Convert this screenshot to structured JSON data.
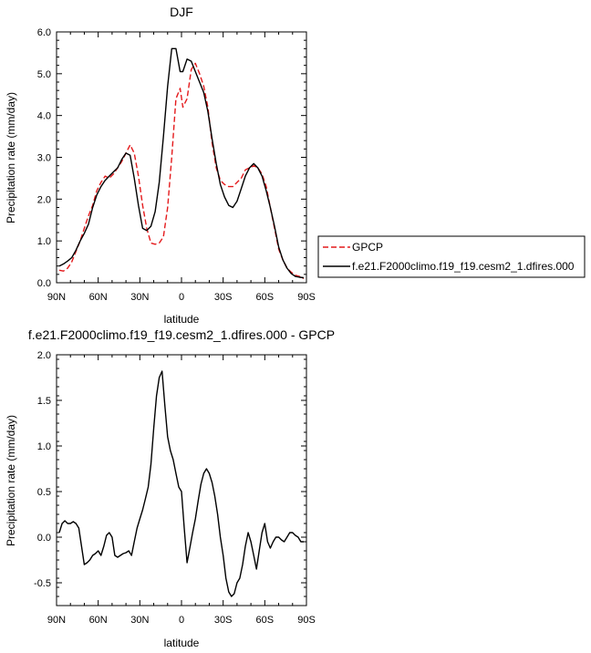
{
  "chart_data": [
    {
      "type": "line",
      "title": "DJF",
      "xlabel": "latitude",
      "ylabel": "Precipitation rate (mm/day)",
      "xlim": [
        90,
        -90
      ],
      "ylim": [
        0,
        6
      ],
      "x_ticks": [
        90,
        60,
        30,
        0,
        -30,
        -60,
        -90
      ],
      "x_tick_labels": [
        "90N",
        "60N",
        "30N",
        "0",
        "30S",
        "60S",
        "90S"
      ],
      "y_ticks": [
        0,
        1,
        2,
        3,
        4,
        5,
        6
      ],
      "y_tick_labels": [
        "0.0",
        "1.0",
        "2.0",
        "3.0",
        "4.0",
        "5.0",
        "6.0"
      ],
      "legend_position": "right",
      "series": [
        {
          "name": "GPCP",
          "color": "#e41a1c",
          "dash": "dashed",
          "x": [
            88,
            85,
            82,
            79,
            76,
            73,
            70,
            67,
            64,
            61,
            58,
            55,
            52,
            49,
            46,
            43,
            40,
            37,
            34,
            31,
            28,
            25,
            22,
            19,
            16,
            13,
            10,
            7,
            4,
            1,
            -1,
            -4,
            -7,
            -10,
            -13,
            -16,
            -19,
            -22,
            -25,
            -28,
            -31,
            -34,
            -37,
            -40,
            -43,
            -46,
            -49,
            -52,
            -55,
            -58,
            -61,
            -64,
            -67,
            -70,
            -73,
            -76,
            -79,
            -82,
            -85,
            -88
          ],
          "y": [
            0.3,
            0.28,
            0.35,
            0.5,
            0.75,
            1.0,
            1.3,
            1.6,
            1.85,
            2.2,
            2.4,
            2.55,
            2.5,
            2.6,
            2.75,
            2.9,
            3.1,
            3.3,
            3.1,
            2.55,
            1.85,
            1.3,
            0.95,
            0.92,
            0.95,
            1.1,
            1.8,
            3.0,
            4.4,
            4.65,
            4.2,
            4.4,
            5.1,
            5.25,
            5.0,
            4.7,
            4.2,
            3.35,
            2.75,
            2.45,
            2.35,
            2.3,
            2.3,
            2.4,
            2.5,
            2.7,
            2.75,
            2.8,
            2.75,
            2.6,
            2.3,
            1.8,
            1.3,
            0.8,
            0.55,
            0.35,
            0.25,
            0.18,
            0.15,
            0.1
          ]
        },
        {
          "name": "f.e21.F2000climo.f19_f19.cesm2_1.dfires.000",
          "color": "#000000",
          "dash": "solid",
          "x": [
            88,
            85,
            82,
            79,
            76,
            73,
            70,
            67,
            64,
            61,
            58,
            55,
            52,
            49,
            46,
            43,
            40,
            37,
            34,
            31,
            28,
            25,
            22,
            19,
            16,
            13,
            10,
            7,
            4,
            1,
            -1,
            -4,
            -7,
            -10,
            -13,
            -16,
            -19,
            -22,
            -25,
            -28,
            -31,
            -34,
            -37,
            -40,
            -43,
            -46,
            -49,
            -52,
            -55,
            -58,
            -61,
            -64,
            -67,
            -70,
            -73,
            -76,
            -79,
            -82,
            -85,
            -88
          ],
          "y": [
            0.4,
            0.45,
            0.52,
            0.6,
            0.78,
            1.0,
            1.18,
            1.4,
            1.8,
            2.1,
            2.3,
            2.45,
            2.55,
            2.65,
            2.75,
            2.95,
            3.1,
            3.05,
            2.5,
            1.85,
            1.3,
            1.25,
            1.35,
            1.7,
            2.4,
            3.5,
            4.7,
            5.6,
            5.6,
            5.05,
            5.05,
            5.35,
            5.3,
            5.05,
            4.8,
            4.55,
            4.1,
            3.45,
            2.85,
            2.35,
            2.05,
            1.85,
            1.8,
            1.95,
            2.25,
            2.55,
            2.75,
            2.85,
            2.75,
            2.55,
            2.2,
            1.8,
            1.35,
            0.85,
            0.55,
            0.35,
            0.22,
            0.15,
            0.13,
            0.12
          ]
        }
      ]
    },
    {
      "type": "line",
      "title": "f.e21.F2000climo.f19_f19.cesm2_1.dfires.000 - GPCP",
      "xlabel": "latitude",
      "ylabel": "Precipitation rate (mm/day)",
      "xlim": [
        90,
        -90
      ],
      "ylim": [
        -0.75,
        2.0
      ],
      "x_ticks": [
        90,
        60,
        30,
        0,
        -30,
        -60,
        -90
      ],
      "x_tick_labels": [
        "90N",
        "60N",
        "30N",
        "0",
        "30S",
        "60S",
        "90S"
      ],
      "y_ticks": [
        -0.5,
        0,
        0.5,
        1.0,
        1.5,
        2.0
      ],
      "y_tick_labels": [
        "-0.5",
        "0.0",
        "0.5",
        "1.0",
        "1.5",
        "2.0"
      ],
      "series": [
        {
          "color": "#000000",
          "dash": "solid",
          "x": [
            88,
            86,
            84,
            82,
            80,
            78,
            76,
            74,
            72,
            70,
            68,
            66,
            64,
            62,
            60,
            58,
            56,
            54,
            52,
            50,
            48,
            46,
            44,
            42,
            40,
            38,
            36,
            34,
            32,
            30,
            28,
            26,
            24,
            22,
            20,
            18,
            16,
            14,
            12,
            10,
            8,
            6,
            4,
            2,
            0,
            -2,
            -4,
            -6,
            -8,
            -10,
            -12,
            -14,
            -16,
            -18,
            -20,
            -22,
            -24,
            -26,
            -28,
            -30,
            -32,
            -34,
            -36,
            -38,
            -40,
            -42,
            -44,
            -46,
            -48,
            -50,
            -52,
            -54,
            -56,
            -58,
            -60,
            -62,
            -64,
            -66,
            -68,
            -70,
            -72,
            -74,
            -76,
            -78,
            -80,
            -82,
            -84,
            -86,
            -88
          ],
          "y": [
            0.05,
            0.15,
            0.18,
            0.15,
            0.15,
            0.17,
            0.15,
            0.1,
            -0.1,
            -0.3,
            -0.28,
            -0.25,
            -0.2,
            -0.18,
            -0.15,
            -0.2,
            -0.1,
            0.02,
            0.05,
            0.0,
            -0.2,
            -0.22,
            -0.2,
            -0.18,
            -0.17,
            -0.15,
            -0.2,
            -0.05,
            0.1,
            0.2,
            0.3,
            0.42,
            0.55,
            0.8,
            1.2,
            1.55,
            1.75,
            1.82,
            1.45,
            1.1,
            0.95,
            0.85,
            0.7,
            0.55,
            0.5,
            0.1,
            -0.28,
            -0.12,
            0.05,
            0.2,
            0.4,
            0.58,
            0.7,
            0.75,
            0.7,
            0.6,
            0.45,
            0.25,
            0.0,
            -0.2,
            -0.45,
            -0.6,
            -0.65,
            -0.62,
            -0.5,
            -0.45,
            -0.3,
            -0.1,
            0.05,
            -0.05,
            -0.2,
            -0.35,
            -0.15,
            0.05,
            0.15,
            -0.05,
            -0.12,
            -0.05,
            0.0,
            0.0,
            -0.03,
            -0.05,
            0.0,
            0.05,
            0.05,
            0.02,
            0.0,
            -0.05,
            -0.05
          ]
        }
      ]
    }
  ]
}
